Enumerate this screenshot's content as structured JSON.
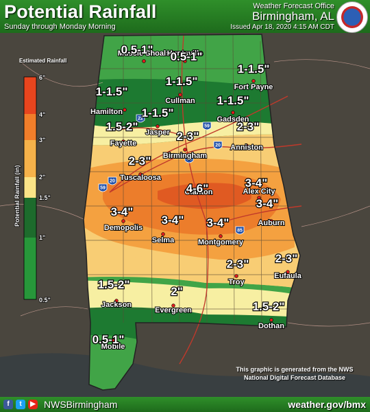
{
  "header": {
    "title": "Potential Rainfall",
    "subtitle": "Sunday through Monday Morning",
    "office_line1": "Weather Forecast Office",
    "office_line2": "Birmingham, AL",
    "issued": "Issued Apr 18, 2020 4:15 AM CDT"
  },
  "legend": {
    "title": "Estimated Rainfall",
    "axis_label": "Potential Rainfall (in)",
    "ticks": [
      "6\"",
      "4\"",
      "3\"",
      "2\"",
      "1.5\"",
      "1\"",
      "0.5\""
    ],
    "colors": [
      "#e8451e",
      "#f27e2a",
      "#f6b24a",
      "#fbe487",
      "#edf2a0",
      "#1d6b2c",
      "#27973a",
      "#49ae4a"
    ]
  },
  "zone_colors": {
    "z1": "#41a447",
    "z2": "#1d7a31",
    "z3": "#f7efa2",
    "z4": "#f8cd74",
    "z5": "#f4a140",
    "z6": "#ec7d2b",
    "z7": "#e05a22"
  },
  "rainfall_labels": [
    {
      "id": "nw",
      "text": "0.5-1\""
    },
    {
      "id": "n",
      "text": "0.5-1\""
    },
    {
      "id": "ne",
      "text": "1-1.5\""
    },
    {
      "id": "ham",
      "text": "1-1.5\""
    },
    {
      "id": "cul",
      "text": "1-1.5\""
    },
    {
      "id": "gad",
      "text": "1-1.5\""
    },
    {
      "id": "jas",
      "text": "1-1.5\""
    },
    {
      "id": "fay",
      "text": "1.5-2\""
    },
    {
      "id": "ann",
      "text": "2-3\""
    },
    {
      "id": "bhm",
      "text": "2-3\""
    },
    {
      "id": "tus",
      "text": "2-3\""
    },
    {
      "id": "cla",
      "text": "4-6\""
    },
    {
      "id": "alx",
      "text": "3-4\""
    },
    {
      "id": "dem",
      "text": "3-4\""
    },
    {
      "id": "sel",
      "text": "3-4\""
    },
    {
      "id": "mgm",
      "text": "3-4\""
    },
    {
      "id": "aub",
      "text": "3-4\""
    },
    {
      "id": "tro",
      "text": "2-3\""
    },
    {
      "id": "euf",
      "text": "2-3\""
    },
    {
      "id": "jac",
      "text": "1.5-2\""
    },
    {
      "id": "eve",
      "text": "2\""
    },
    {
      "id": "dot",
      "text": "1.5-2\""
    },
    {
      "id": "mob",
      "text": "0.5-1\""
    }
  ],
  "cities": [
    {
      "id": "ms",
      "name": "Muscle Shoals"
    },
    {
      "id": "hsv",
      "name": "Huntsville"
    },
    {
      "id": "fp",
      "name": "Fort Payne"
    },
    {
      "id": "ham",
      "name": "Hamilton"
    },
    {
      "id": "cul",
      "name": "Cullman"
    },
    {
      "id": "gad",
      "name": "Gadsden"
    },
    {
      "id": "jas",
      "name": "Jasper"
    },
    {
      "id": "fay",
      "name": "Fayette"
    },
    {
      "id": "bhm",
      "name": "Birmingham"
    },
    {
      "id": "ann",
      "name": "Anniston"
    },
    {
      "id": "tus",
      "name": "Tuscaloosa"
    },
    {
      "id": "cla",
      "name": "Clanton"
    },
    {
      "id": "alx",
      "name": "Alex City"
    },
    {
      "id": "dem",
      "name": "Demopolis"
    },
    {
      "id": "sel",
      "name": "Selma"
    },
    {
      "id": "mgm",
      "name": "Montgomery"
    },
    {
      "id": "aub",
      "name": "Auburn"
    },
    {
      "id": "tro",
      "name": "Troy"
    },
    {
      "id": "euf",
      "name": "Eufaula"
    },
    {
      "id": "jac",
      "name": "Jackson"
    },
    {
      "id": "eve",
      "name": "Evergreen"
    },
    {
      "id": "dot",
      "name": "Dothan"
    },
    {
      "id": "mob",
      "name": "Mobile"
    }
  ],
  "interstates": [
    "22",
    "59",
    "20",
    "65",
    "20",
    "59",
    "85"
  ],
  "footer": {
    "handle": "NWSBirmingham",
    "site": "weather.gov/bmx",
    "note_line1": "This graphic is generated from the NWS",
    "note_line2": "National Digital Forecast Database"
  }
}
